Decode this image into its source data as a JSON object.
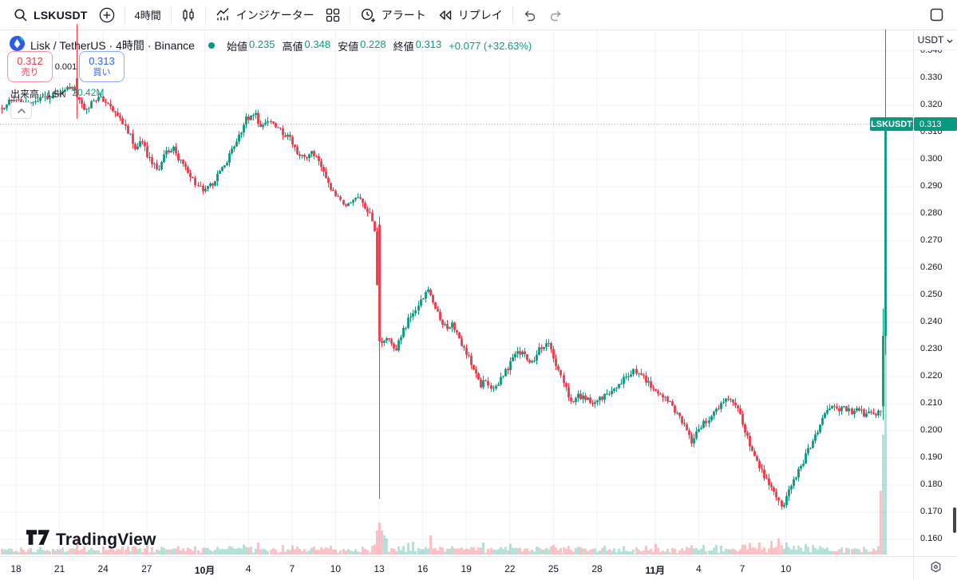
{
  "toolbar": {
    "symbol": "LSKUSDT",
    "interval": "4時間",
    "indicators_label": "インジケーター",
    "alert_label": "アラート",
    "replay_label": "リプレイ"
  },
  "legend": {
    "title": "Lisk / TetherUS · 4時間 · Binance",
    "ohlc": {
      "open_label": "始値",
      "open": "0.235",
      "high_label": "高値",
      "high": "0.348",
      "low_label": "安値",
      "low": "0.228",
      "close_label": "終値",
      "close": "0.313",
      "change": "+0.077 (+32.63%)"
    }
  },
  "trade": {
    "sell_price": "0.312",
    "sell_label": "売り",
    "spread": "0.001",
    "buy_price": "0.313",
    "buy_label": "買い"
  },
  "volume_row": {
    "label": "出来高 · LSK",
    "value": "20.42M"
  },
  "price_axis": {
    "currency": "USDT",
    "ticks": [
      "0.340",
      "0.330",
      "0.320",
      "0.310",
      "0.300",
      "0.290",
      "0.280",
      "0.270",
      "0.260",
      "0.250",
      "0.240",
      "0.230",
      "0.220",
      "0.210",
      "0.200",
      "0.190",
      "0.180",
      "0.170",
      "0.160"
    ],
    "current": "0.313"
  },
  "time_axis": {
    "ticks": [
      {
        "label": "18",
        "t": 1
      },
      {
        "label": "21",
        "t": 4
      },
      {
        "label": "24",
        "t": 7
      },
      {
        "label": "27",
        "t": 10
      },
      {
        "label": "10月",
        "t": 14,
        "bold": true
      },
      {
        "label": "4",
        "t": 17
      },
      {
        "label": "7",
        "t": 20
      },
      {
        "label": "10",
        "t": 23
      },
      {
        "label": "13",
        "t": 26
      },
      {
        "label": "16",
        "t": 29
      },
      {
        "label": "19",
        "t": 32
      },
      {
        "label": "22",
        "t": 35
      },
      {
        "label": "25",
        "t": 38
      },
      {
        "label": "28",
        "t": 41
      },
      {
        "label": "11月",
        "t": 45,
        "bold": true
      },
      {
        "label": "4",
        "t": 48
      },
      {
        "label": "7",
        "t": 51
      },
      {
        "label": "10",
        "t": 54
      }
    ]
  },
  "badge": {
    "symbol": "LSKUSDT",
    "price": "0.313"
  },
  "watermark": {
    "text": "TradingView"
  },
  "colors": {
    "up": "#089981",
    "down": "#f23645",
    "buy_blue": "#2962ff",
    "sell_red": "#f23645",
    "volume_up": "rgba(8,153,129,0.32)",
    "volume_down": "rgba(242,54,69,0.32)",
    "grid": "#f0f2f7",
    "axis_text": "#131722",
    "badge_bg": "#089981"
  },
  "chart_data": {
    "type": "candlestick",
    "symbol": "LSKUSDT",
    "exchange": "Binance",
    "interval": "4h",
    "price_axis_range": [
      0.16,
      0.348
    ],
    "visible_span": "Sep 18 - Nov 10+",
    "current_price": 0.313,
    "last_candle": {
      "open": 0.235,
      "high": 0.348,
      "low": 0.228,
      "close": 0.313,
      "change": 0.077,
      "change_pct": 32.63
    },
    "t_end": 61.0,
    "waypoints": [
      [
        0,
        0.319
      ],
      [
        1,
        0.322
      ],
      [
        2,
        0.32
      ],
      [
        3,
        0.323
      ],
      [
        4.1,
        0.324
      ],
      [
        5.0,
        0.327
      ],
      [
        5.3,
        0.324
      ],
      [
        5.9,
        0.318
      ],
      [
        6.8,
        0.323
      ],
      [
        7.3,
        0.321
      ],
      [
        8.1,
        0.317
      ],
      [
        8.9,
        0.31
      ],
      [
        9.4,
        0.304
      ],
      [
        9.8,
        0.307
      ],
      [
        10.3,
        0.3
      ],
      [
        10.9,
        0.296
      ],
      [
        11.4,
        0.302
      ],
      [
        12.0,
        0.304
      ],
      [
        12.6,
        0.298
      ],
      [
        13.4,
        0.292
      ],
      [
        14.1,
        0.288
      ],
      [
        14.6,
        0.291
      ],
      [
        15.3,
        0.296
      ],
      [
        16.0,
        0.303
      ],
      [
        16.5,
        0.309
      ],
      [
        17.0,
        0.315
      ],
      [
        17.6,
        0.317
      ],
      [
        18.0,
        0.312
      ],
      [
        18.7,
        0.315
      ],
      [
        19.2,
        0.311
      ],
      [
        20.0,
        0.308
      ],
      [
        20.5,
        0.303
      ],
      [
        21.1,
        0.3
      ],
      [
        21.6,
        0.303
      ],
      [
        22.2,
        0.297
      ],
      [
        22.7,
        0.29
      ],
      [
        23.4,
        0.285
      ],
      [
        24.1,
        0.283
      ],
      [
        24.7,
        0.287
      ],
      [
        25.3,
        0.281
      ],
      [
        25.8,
        0.277
      ],
      [
        26.2,
        0.231
      ],
      [
        26.8,
        0.235
      ],
      [
        27.3,
        0.23
      ],
      [
        27.8,
        0.237
      ],
      [
        28.4,
        0.243
      ],
      [
        28.9,
        0.247
      ],
      [
        29.5,
        0.252
      ],
      [
        29.8,
        0.248
      ],
      [
        30.2,
        0.243
      ],
      [
        30.7,
        0.238
      ],
      [
        31.2,
        0.24
      ],
      [
        31.7,
        0.233
      ],
      [
        32.2,
        0.228
      ],
      [
        32.8,
        0.222
      ],
      [
        33.1,
        0.216
      ],
      [
        33.4,
        0.218
      ],
      [
        34.0,
        0.215
      ],
      [
        34.6,
        0.22
      ],
      [
        35.3,
        0.226
      ],
      [
        35.7,
        0.23
      ],
      [
        36.2,
        0.227
      ],
      [
        36.6,
        0.224
      ],
      [
        37.0,
        0.229
      ],
      [
        37.7,
        0.233
      ],
      [
        38.1,
        0.228
      ],
      [
        38.5,
        0.222
      ],
      [
        39.0,
        0.215
      ],
      [
        39.4,
        0.21
      ],
      [
        39.8,
        0.213
      ],
      [
        40.3,
        0.212
      ],
      [
        41.0,
        0.21
      ],
      [
        41.7,
        0.213
      ],
      [
        42.3,
        0.216
      ],
      [
        43.0,
        0.219
      ],
      [
        43.6,
        0.222
      ],
      [
        44.2,
        0.22
      ],
      [
        44.8,
        0.217
      ],
      [
        45.5,
        0.213
      ],
      [
        46.2,
        0.21
      ],
      [
        46.7,
        0.206
      ],
      [
        47.3,
        0.2
      ],
      [
        47.7,
        0.196
      ],
      [
        48.1,
        0.2
      ],
      [
        48.7,
        0.204
      ],
      [
        49.2,
        0.207
      ],
      [
        49.8,
        0.21
      ],
      [
        50.3,
        0.212
      ],
      [
        50.9,
        0.207
      ],
      [
        51.3,
        0.2
      ],
      [
        51.8,
        0.193
      ],
      [
        52.2,
        0.188
      ],
      [
        52.6,
        0.184
      ],
      [
        53.1,
        0.18
      ],
      [
        53.5,
        0.175
      ],
      [
        53.9,
        0.171
      ],
      [
        54.3,
        0.177
      ],
      [
        54.7,
        0.182
      ],
      [
        55.2,
        0.187
      ],
      [
        55.6,
        0.192
      ],
      [
        56.1,
        0.197
      ],
      [
        56.5,
        0.202
      ],
      [
        56.9,
        0.207
      ],
      [
        57.4,
        0.21
      ],
      [
        57.8,
        0.207
      ],
      [
        58.2,
        0.209
      ],
      [
        58.7,
        0.206
      ],
      [
        59.1,
        0.208
      ],
      [
        59.5,
        0.206
      ],
      [
        59.9,
        0.208
      ],
      [
        60.3,
        0.206
      ],
      [
        60.55,
        0.208
      ]
    ],
    "special_candles": [
      {
        "t": 5.17,
        "o": 0.33,
        "h": 0.35,
        "l": 0.315,
        "c": 0.323
      },
      {
        "t": 26.0,
        "o": 0.276,
        "h": 0.279,
        "l": 0.175,
        "c": 0.233
      },
      {
        "t": 60.67,
        "o": 0.209,
        "h": 0.245,
        "l": 0.204,
        "c": 0.235
      },
      {
        "t": 60.83,
        "o": 0.235,
        "h": 0.348,
        "l": 0.228,
        "c": 0.313
      }
    ],
    "volume_spikes": [
      [
        5.17,
        24
      ],
      [
        26.0,
        40
      ],
      [
        26.17,
        30
      ],
      [
        26.33,
        24
      ],
      [
        26.5,
        20
      ],
      [
        28.4,
        16
      ],
      [
        29.5,
        24
      ],
      [
        33.1,
        15
      ],
      [
        45.0,
        13
      ],
      [
        49.2,
        12
      ],
      [
        52.2,
        15
      ],
      [
        53.0,
        17
      ],
      [
        53.5,
        20
      ],
      [
        54.0,
        15
      ],
      [
        60.5,
        80
      ],
      [
        60.67,
        150
      ],
      [
        60.83,
        275
      ]
    ]
  }
}
